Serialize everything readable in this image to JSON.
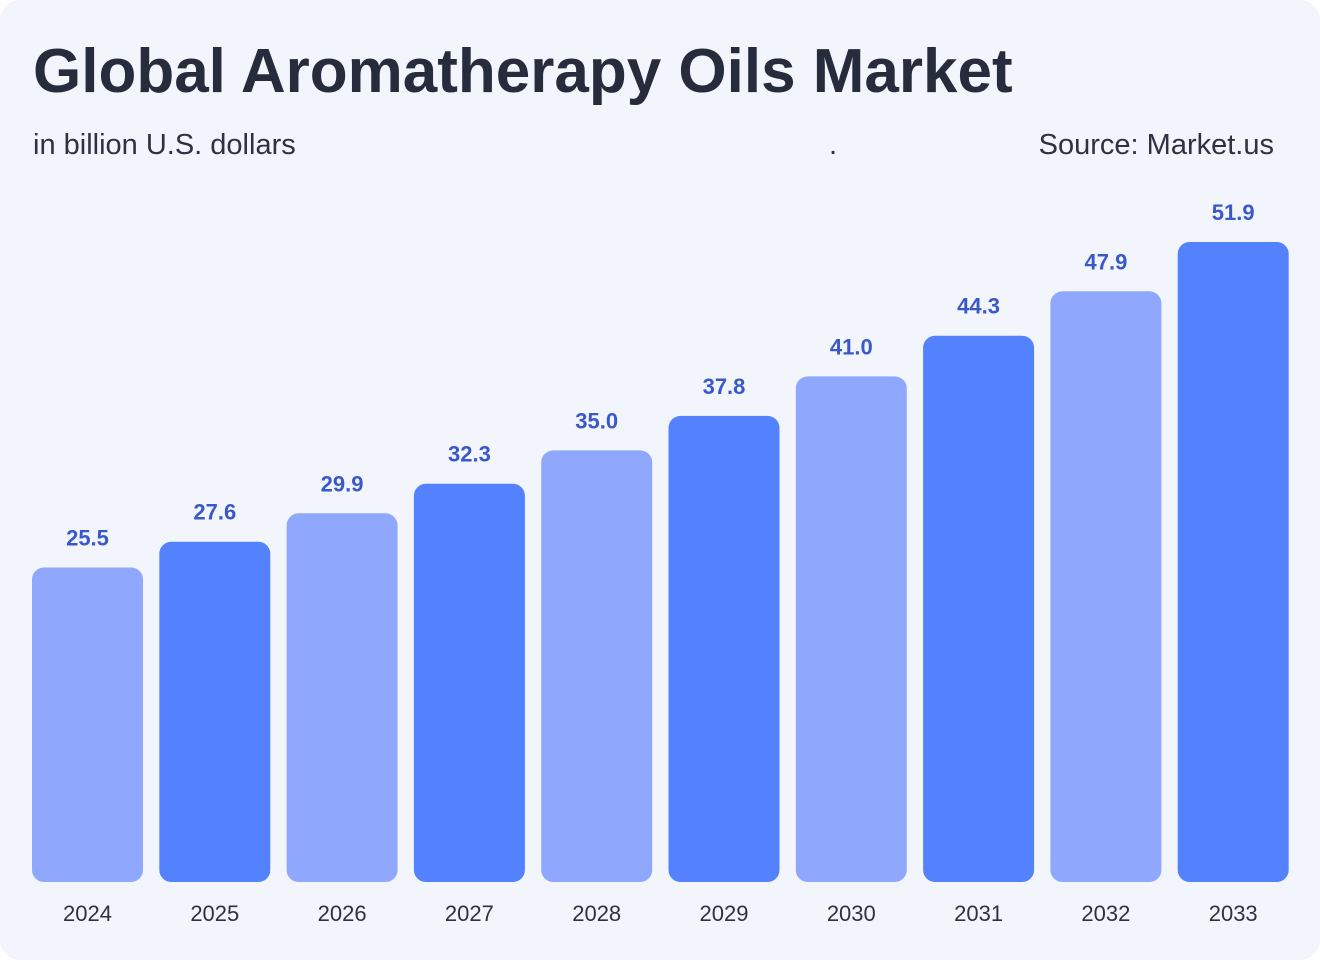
{
  "header": {
    "title": "Global Aromatherapy Oils Market",
    "subtitle": "in billion U.S. dollars",
    "separator": ".",
    "source": "Source: Market.us"
  },
  "colors": {
    "background": "#f3f5fd",
    "bar_light": "#8fa8fd",
    "bar_dark": "#5482fe",
    "value_label": "#3a59c9",
    "text": "#2d3142"
  },
  "chart_data": {
    "type": "bar",
    "title": "Global Aromatherapy Oils Market",
    "subtitle": "in billion U.S. dollars",
    "xlabel": "",
    "ylabel": "",
    "categories": [
      "2024",
      "2025",
      "2026",
      "2027",
      "2028",
      "2029",
      "2030",
      "2031",
      "2032",
      "2033"
    ],
    "values": [
      25.5,
      27.6,
      29.9,
      32.3,
      35.0,
      37.8,
      41.0,
      44.3,
      47.9,
      51.9
    ],
    "value_labels": [
      "25.5",
      "27.6",
      "29.9",
      "32.3",
      "35.0",
      "37.8",
      "41.0",
      "44.3",
      "47.9",
      "51.9"
    ],
    "bar_shades": [
      "light",
      "dark",
      "light",
      "dark",
      "light",
      "dark",
      "light",
      "dark",
      "light",
      "dark"
    ],
    "ylim": [
      0,
      51.9
    ],
    "grid": false,
    "legend": "none"
  }
}
